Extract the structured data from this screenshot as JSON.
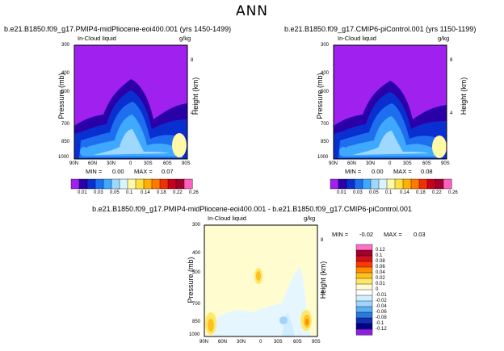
{
  "page_title": "ANN",
  "chart_data": [
    {
      "type": "contour",
      "title": "b.e21.B1850.f09_g17.PMIP4-midPliocene-eoi400.001 (yrs 1450-1499)",
      "variable": "In-Cloud liquid",
      "units": "g/kg",
      "ylabel": "Pressure (mb)",
      "y2label": "Height (km)",
      "xticks": [
        "90N",
        "60N",
        "30N",
        "0",
        "30S",
        "60S",
        "90S"
      ],
      "yticks": [
        "300",
        "400",
        "500",
        "700",
        "850",
        "1000"
      ],
      "y2ticks": [
        "8",
        "4"
      ],
      "min_label": "MIN =",
      "min_value": "0.00",
      "max_label": "MAX =",
      "max_value": "0.07",
      "field_peak": 0.07,
      "colorbar_labels": [
        "0.01",
        "0.03",
        "0.05",
        "0.1",
        "0.14",
        "0.18",
        "0.22",
        "0.26"
      ],
      "colorbar_colors": [
        "#a020f0",
        "#2a00a8",
        "#0a2fd0",
        "#1e6ff0",
        "#3fa8ff",
        "#9fd8ff",
        "#d8f4ff",
        "#fff9a8",
        "#ffe040",
        "#ffb000",
        "#ff7800",
        "#f03000",
        "#c8001e",
        "#a0002a",
        "#ff60c0"
      ]
    },
    {
      "type": "contour",
      "title": "b.e21.B1850.f09_g17.CMIP6-piControl.001 (yrs 1150-1199)",
      "variable": "In-Cloud liquid",
      "units": "g/kg",
      "ylabel": "Pressure (mb)",
      "y2label": "Height (km)",
      "xticks": [
        "90N",
        "60N",
        "30N",
        "0",
        "30S",
        "60S",
        "90S"
      ],
      "yticks": [
        "300",
        "400",
        "500",
        "700",
        "850",
        "1000"
      ],
      "y2ticks": [
        "8",
        "4"
      ],
      "min_label": "MIN =",
      "min_value": "0.00",
      "max_label": "MAX =",
      "max_value": "0.08",
      "field_peak": 0.08,
      "colorbar_labels": [
        "0.01",
        "0.03",
        "0.05",
        "0.1",
        "0.14",
        "0.18",
        "0.22",
        "0.26"
      ],
      "colorbar_colors": [
        "#a020f0",
        "#2a00a8",
        "#0a2fd0",
        "#1e6ff0",
        "#3fa8ff",
        "#9fd8ff",
        "#d8f4ff",
        "#fff9a8",
        "#ffe040",
        "#ffb000",
        "#ff7800",
        "#f03000",
        "#c8001e",
        "#a0002a",
        "#ff60c0"
      ]
    },
    {
      "type": "contour-difference",
      "title": "b.e21.B1850.f09_g17.PMIP4-midPliocene-eoi400.001  -  b.e21.B1850.f09_g17.CMIP6-piControl.001",
      "variable": "In-Cloud liquid",
      "units": "g/kg",
      "ylabel": "Pressure (mb)",
      "y2label": "Height (km)",
      "xticks": [
        "90N",
        "60N",
        "30N",
        "0",
        "30S",
        "60S",
        "90S"
      ],
      "yticks": [
        "300",
        "400",
        "500",
        "700",
        "850",
        "1000"
      ],
      "y2ticks": [
        "8",
        "4"
      ],
      "min_label": "MIN =",
      "min_value": "-0.02",
      "max_label": "MAX =",
      "max_value": "0.03",
      "colorbar_labels": [
        "0.12",
        "0.1",
        "0.08",
        "0.06",
        "0.04",
        "0.02",
        "0.01",
        "0",
        "-0.01",
        "-0.02",
        "-0.04",
        "-0.06",
        "-0.08",
        "-0.1",
        "-0.12"
      ],
      "colorbar_colors": [
        "#ff70c8",
        "#a0002a",
        "#d01020",
        "#ff3a00",
        "#ff8c00",
        "#ffc020",
        "#ffe868",
        "#fffdd0",
        "#ffffff",
        "#cfeeff",
        "#9fd4ff",
        "#5ab0f0",
        "#2a78e0",
        "#1030b0",
        "#000088",
        "#9020e0"
      ]
    }
  ]
}
